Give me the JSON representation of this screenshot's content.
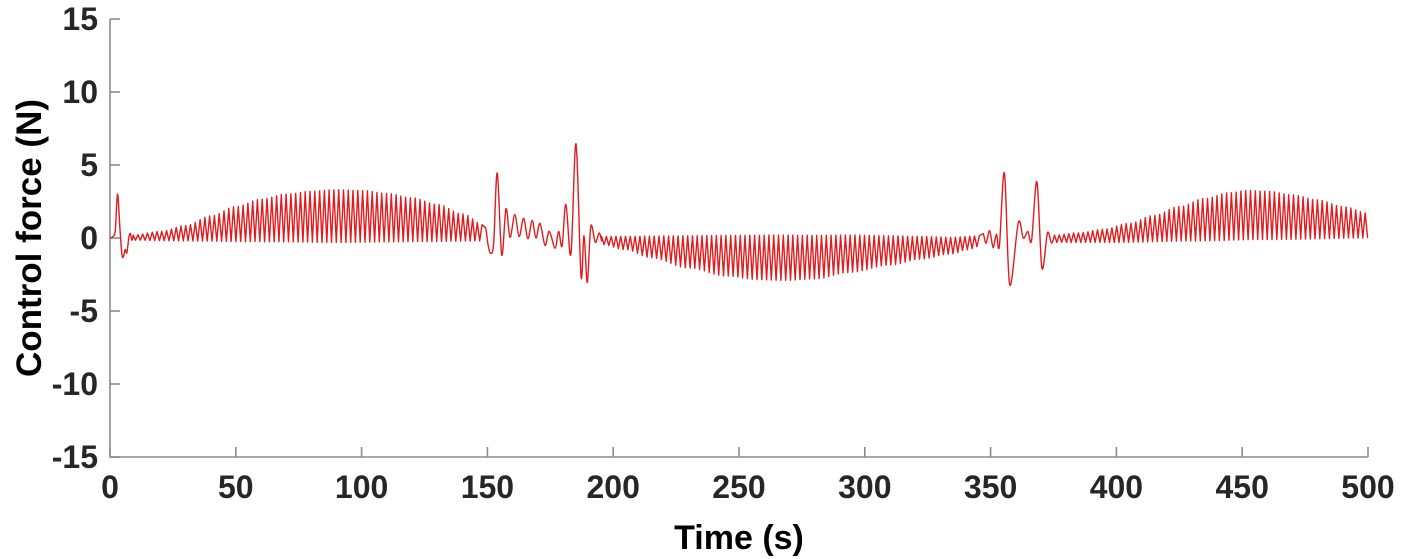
{
  "chart_data": {
    "type": "line",
    "title": "",
    "xlabel": "Time (s)",
    "ylabel": "Control force (N)",
    "xlim": [
      0,
      500
    ],
    "ylim": [
      -15,
      15
    ],
    "x_ticks": [
      0,
      50,
      100,
      150,
      200,
      250,
      300,
      350,
      400,
      450,
      500
    ],
    "y_ticks": [
      15,
      10,
      5,
      0,
      -5,
      -10,
      -15
    ],
    "grid": false,
    "legend": null,
    "line_color": "#e11b1e",
    "axis_color": "#8c8c8c",
    "tick_label_color": "#262626",
    "title_color": "#000000",
    "carrier_period_s": 1.9,
    "series_name": "control-force",
    "segments": [
      {
        "type": "transient",
        "points": [
          [
            0,
            0
          ],
          [
            1.2,
            0.1
          ],
          [
            2.1,
            0.55
          ],
          [
            3.0,
            3.0
          ],
          [
            3.9,
            0.8
          ],
          [
            4.7,
            -1.05
          ],
          [
            5.3,
            -1.3
          ],
          [
            6.0,
            -0.8
          ],
          [
            6.7,
            -1.0
          ],
          [
            7.5,
            0.05
          ],
          [
            8.1,
            0.3
          ],
          [
            8.7,
            -0.15
          ],
          [
            9.2,
            0.15
          ]
        ]
      },
      {
        "type": "oscillation",
        "t0": 9.2,
        "t1": 148.6,
        "upper": [
          [
            9.2,
            0.2
          ],
          [
            20,
            0.45
          ],
          [
            30,
            0.85
          ],
          [
            40,
            1.5
          ],
          [
            50,
            2.15
          ],
          [
            60,
            2.65
          ],
          [
            70,
            3.0
          ],
          [
            80,
            3.2
          ],
          [
            90,
            3.3
          ],
          [
            100,
            3.25
          ],
          [
            110,
            3.05
          ],
          [
            120,
            2.75
          ],
          [
            130,
            2.3
          ],
          [
            140,
            1.65
          ],
          [
            148.6,
            0.9
          ]
        ],
        "lower": [
          [
            9.2,
            -0.15
          ],
          [
            30,
            -0.2
          ],
          [
            60,
            -0.25
          ],
          [
            90,
            -0.3
          ],
          [
            120,
            -0.25
          ],
          [
            148.6,
            -0.2
          ]
        ]
      },
      {
        "type": "transient",
        "points": [
          [
            149.3,
            0.7
          ],
          [
            150.2,
            -0.4
          ],
          [
            151.3,
            -1.05
          ],
          [
            152.5,
            -0.3
          ],
          [
            153.9,
            4.45
          ],
          [
            155.7,
            -1.15
          ],
          [
            157.4,
            2.0
          ],
          [
            159.0,
            0.05
          ],
          [
            160.9,
            1.6
          ],
          [
            162.6,
            0.1
          ],
          [
            164.4,
            1.35
          ],
          [
            166.1,
            -0.05
          ],
          [
            167.8,
            1.2
          ],
          [
            169.3,
            0.0
          ],
          [
            170.9,
            1.0
          ],
          [
            172.9,
            -0.5
          ],
          [
            174.6,
            0.45
          ],
          [
            176.9,
            -0.7
          ],
          [
            178.3,
            0.45
          ],
          [
            179.7,
            -0.55
          ],
          [
            181.2,
            2.3
          ],
          [
            183.2,
            -1.1
          ],
          [
            185.2,
            6.45
          ],
          [
            187.2,
            -2.6
          ],
          [
            188.4,
            0.15
          ],
          [
            189.7,
            -3.05
          ],
          [
            191.1,
            0.8
          ],
          [
            192.9,
            -0.3
          ],
          [
            194.4,
            0.35
          ],
          [
            195.4,
            -0.2
          ]
        ]
      },
      {
        "type": "oscillation",
        "t0": 195.4,
        "t1": 346,
        "upper": [
          [
            195.4,
            0.1
          ],
          [
            210,
            0.12
          ],
          [
            230,
            0.15
          ],
          [
            250,
            0.18
          ],
          [
            265,
            0.2
          ],
          [
            280,
            0.18
          ],
          [
            295,
            0.2
          ],
          [
            310,
            0.15
          ],
          [
            322,
            0.1
          ],
          [
            334,
            0.05
          ],
          [
            346,
            0.15
          ]
        ],
        "lower": [
          [
            195.4,
            -0.45
          ],
          [
            205,
            -0.8
          ],
          [
            215,
            -1.35
          ],
          [
            230,
            -2.05
          ],
          [
            245,
            -2.6
          ],
          [
            258,
            -2.85
          ],
          [
            268,
            -2.9
          ],
          [
            280,
            -2.8
          ],
          [
            294,
            -2.35
          ],
          [
            310,
            -1.85
          ],
          [
            322,
            -1.45
          ],
          [
            334,
            -1.1
          ],
          [
            341,
            -0.8
          ],
          [
            346,
            -0.55
          ]
        ]
      },
      {
        "type": "transient",
        "points": [
          [
            347.0,
            0.3
          ],
          [
            348.2,
            -0.35
          ],
          [
            349.6,
            0.5
          ],
          [
            351.0,
            -0.65
          ],
          [
            352.3,
            0.25
          ],
          [
            353.5,
            -0.55
          ],
          [
            355.5,
            4.45
          ],
          [
            357.6,
            -3.2
          ],
          [
            361.0,
            1.05
          ],
          [
            363.0,
            0.0
          ],
          [
            364.8,
            0.45
          ],
          [
            366.3,
            -0.15
          ],
          [
            368.4,
            3.85
          ],
          [
            370.4,
            -2.05
          ],
          [
            372.6,
            0.35
          ],
          [
            374.2,
            -0.35
          ],
          [
            375.4,
            0.2
          ]
        ]
      },
      {
        "type": "oscillation",
        "t0": 375.4,
        "t1": 500,
        "upper": [
          [
            375.4,
            0.2
          ],
          [
            385,
            0.35
          ],
          [
            395,
            0.6
          ],
          [
            405,
            1.0
          ],
          [
            415,
            1.55
          ],
          [
            425,
            2.15
          ],
          [
            435,
            2.7
          ],
          [
            445,
            3.1
          ],
          [
            452,
            3.25
          ],
          [
            460,
            3.2
          ],
          [
            470,
            2.95
          ],
          [
            480,
            2.6
          ],
          [
            490,
            2.15
          ],
          [
            500,
            1.7
          ]
        ],
        "lower": [
          [
            375.4,
            -0.3
          ],
          [
            400,
            -0.3
          ],
          [
            430,
            -0.2
          ],
          [
            460,
            -0.1
          ],
          [
            500,
            0.0
          ]
        ]
      }
    ]
  }
}
